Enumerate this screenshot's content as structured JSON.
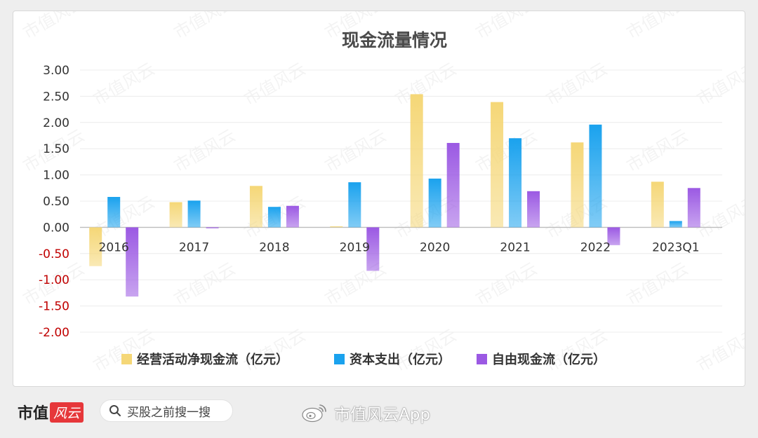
{
  "chart_data": {
    "type": "bar",
    "title": "现金流量情况",
    "categories": [
      "2016",
      "2017",
      "2018",
      "2019",
      "2020",
      "2021",
      "2022",
      "2023Q1"
    ],
    "series": [
      {
        "name": "经营活动净现金流（亿元）",
        "values": [
          -0.74,
          0.48,
          0.79,
          0.02,
          2.54,
          2.39,
          1.62,
          0.87
        ],
        "color": "#f5d777"
      },
      {
        "name": "资本支出（亿元）",
        "values": [
          0.58,
          0.51,
          0.39,
          0.86,
          0.93,
          1.7,
          1.96,
          0.12
        ],
        "color": "#1aa2ee"
      },
      {
        "name": "自由现金流（亿元）",
        "values": [
          -1.32,
          -0.02,
          0.41,
          -0.83,
          1.61,
          0.69,
          -0.34,
          0.75
        ],
        "color": "#9b59e3"
      }
    ],
    "ylim": [
      -2.0,
      3.0
    ],
    "yticks": [
      "3.00",
      "2.50",
      "2.00",
      "1.50",
      "1.00",
      "0.50",
      "0.00",
      "-0.50",
      "-1.00",
      "-1.50",
      "-2.00"
    ],
    "grid": true,
    "legend": "bottom",
    "negative_tick_color": "#c00000",
    "positive_tick_color": "#333333"
  },
  "watermark": "市值风云",
  "footer": {
    "brand": "市值",
    "brand_badge": "风云",
    "search_text": "买股之前搜一搜",
    "weibo_text": "市值风云App"
  }
}
